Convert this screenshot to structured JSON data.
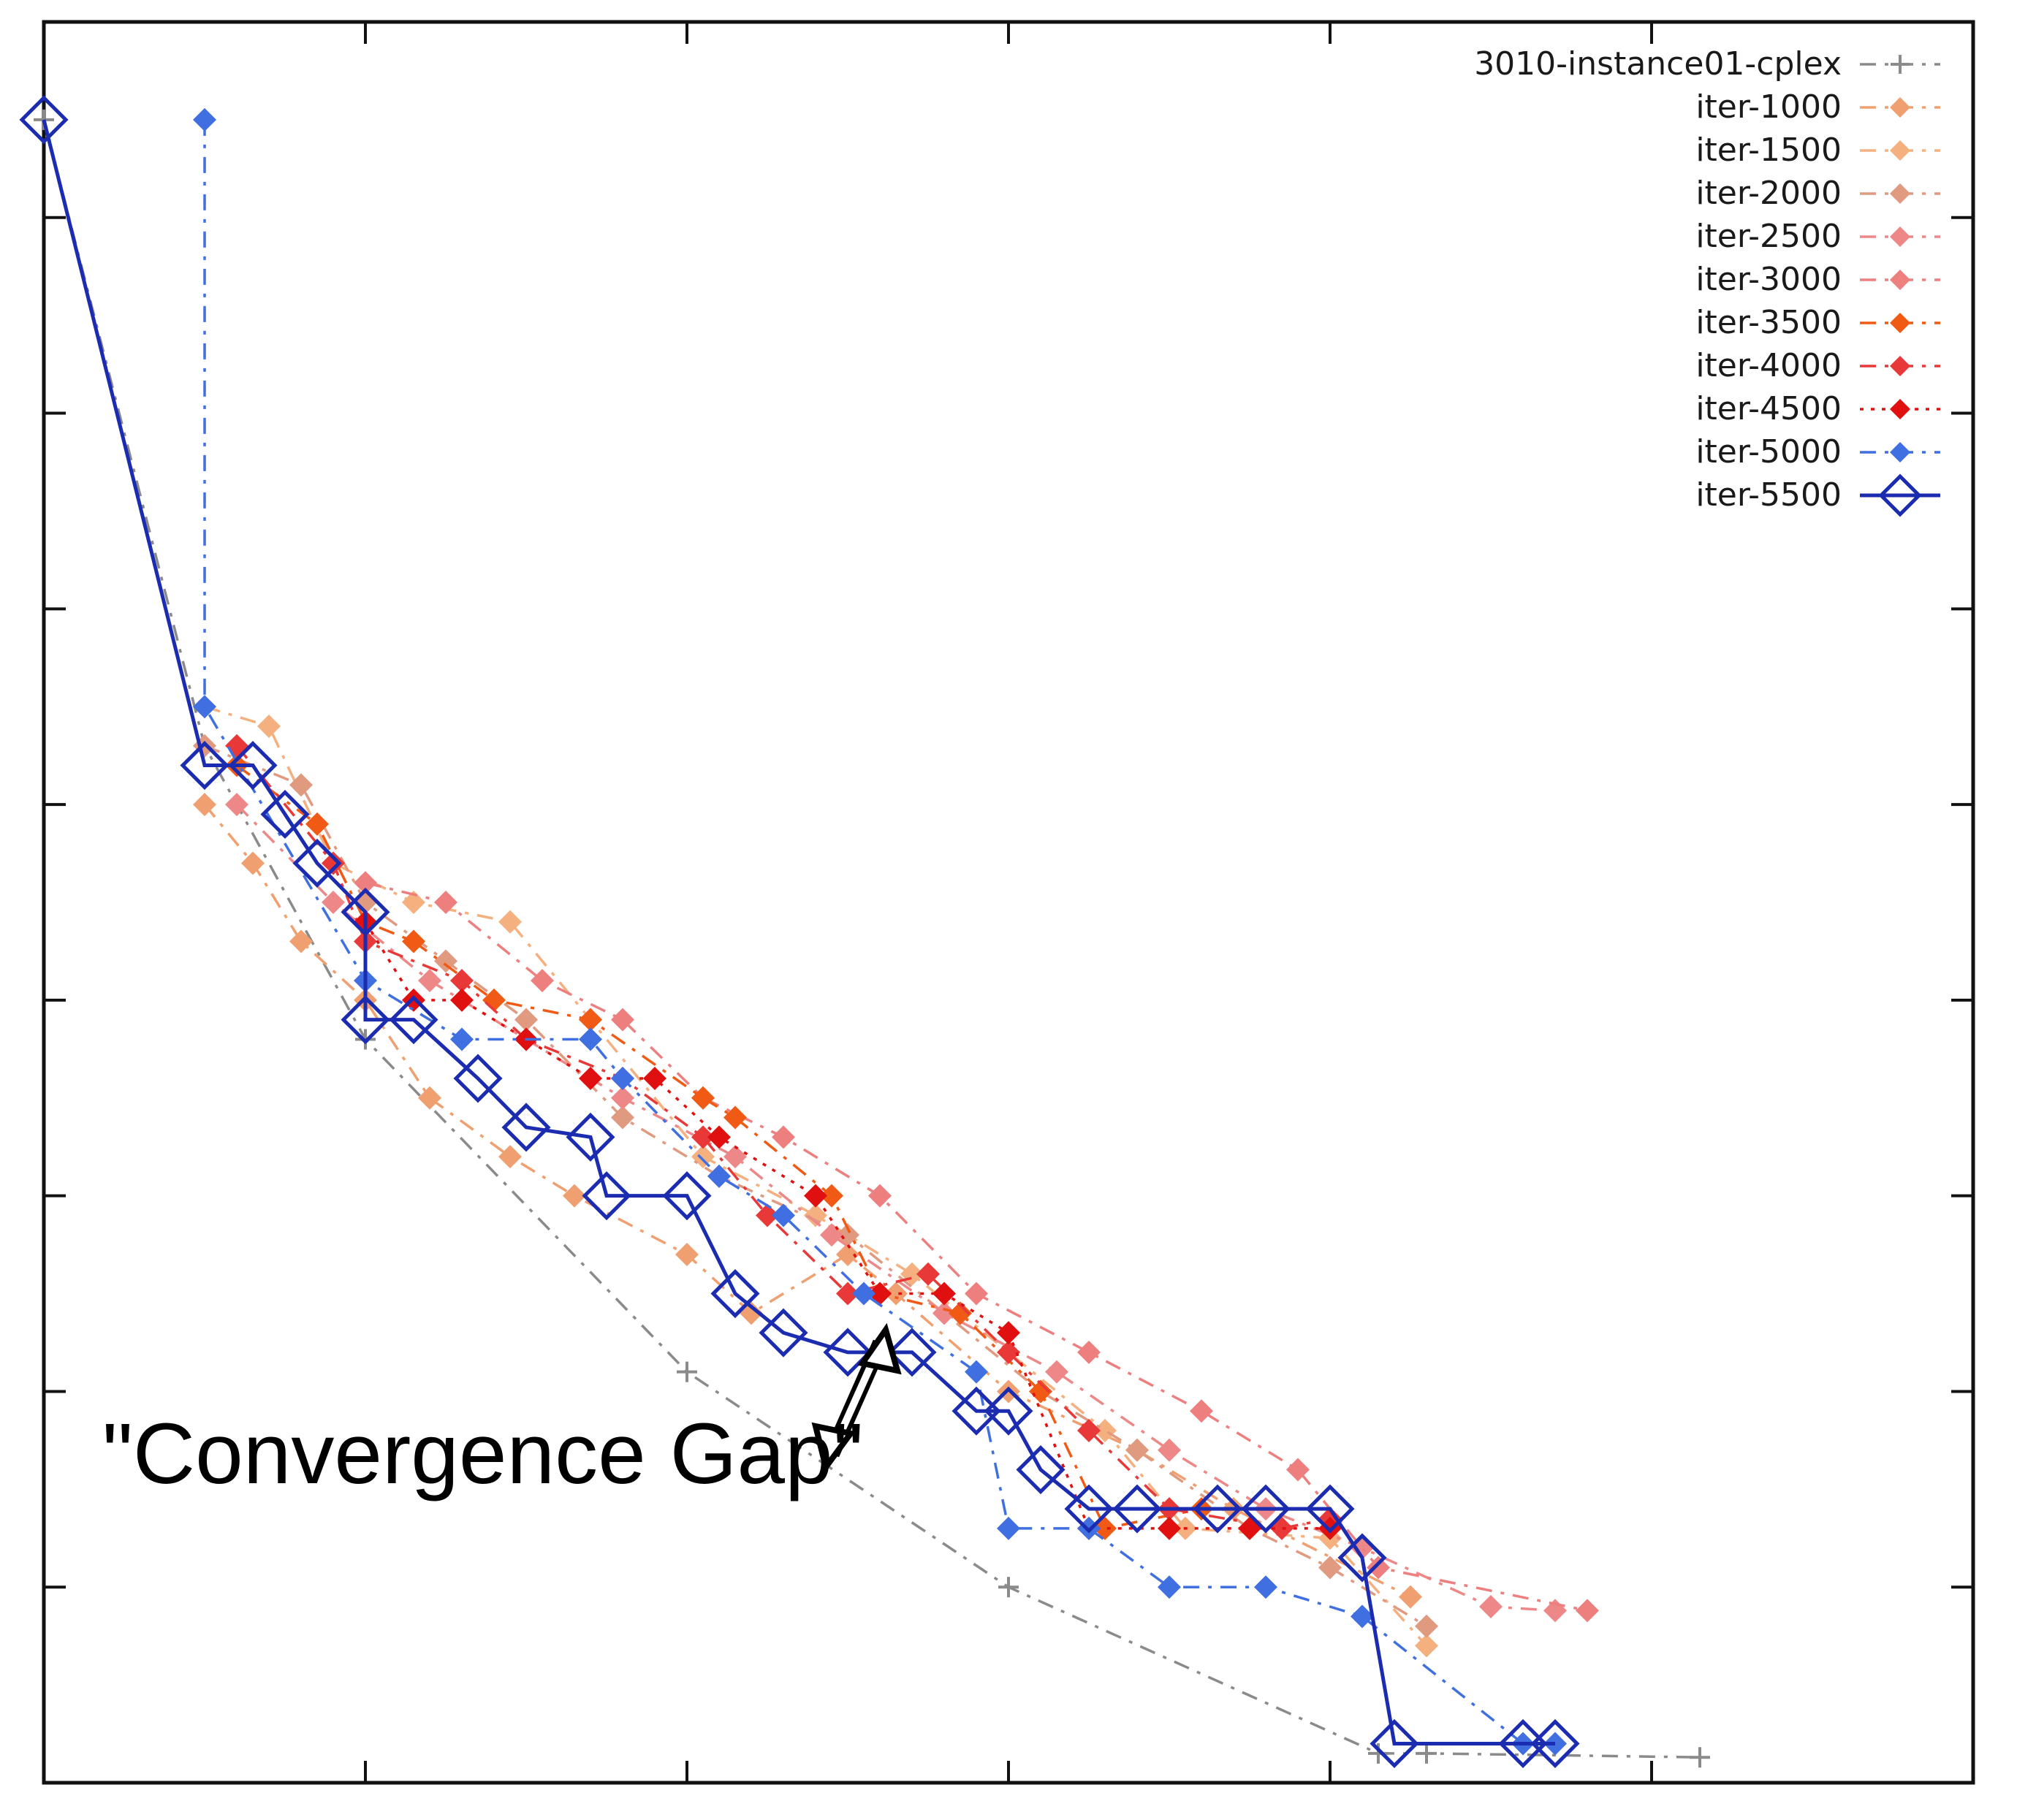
{
  "chart_data": {
    "type": "line",
    "title": "",
    "xlabel": "",
    "ylabel": "",
    "xlim": [
      0,
      12
    ],
    "ylim": [
      0,
      9
    ],
    "grid": false,
    "legend_position": "top-right",
    "annotation": "\"Convergence Gap\"",
    "series": [
      {
        "name": "3010-instance01-cplex",
        "color": "#8a8a8a",
        "marker": "plus",
        "dash": "dashdot",
        "x": [
          0.0,
          1.0,
          2.0,
          4.0,
          6.0,
          8.3,
          8.6,
          10.3
        ],
        "y": [
          8.5,
          5.3,
          3.8,
          2.1,
          1.0,
          0.15,
          0.15,
          0.13
        ]
      },
      {
        "name": "iter-1000",
        "color": "#f0a070",
        "marker": "diamond-filled",
        "dash": "dashdot",
        "x": [
          1.0,
          1.3,
          1.6,
          2.0,
          2.4,
          2.9,
          3.3,
          4.0,
          4.4,
          5.0,
          5.3,
          6.0,
          6.8,
          7.4,
          8.5
        ],
        "y": [
          5.0,
          4.7,
          4.3,
          4.0,
          3.5,
          3.2,
          3.0,
          2.7,
          2.4,
          2.7,
          2.5,
          2.0,
          1.7,
          1.4,
          0.95
        ]
      },
      {
        "name": "iter-1500",
        "color": "#f5b080",
        "marker": "diamond-filled",
        "dash": "dashdot",
        "x": [
          1.0,
          1.4,
          1.8,
          2.3,
          2.9,
          3.4,
          4.1,
          4.8,
          5.4,
          6.0,
          6.6,
          7.1,
          8.0,
          8.6
        ],
        "y": [
          5.5,
          5.4,
          4.7,
          4.5,
          4.4,
          3.9,
          3.2,
          2.9,
          2.6,
          2.2,
          1.8,
          1.3,
          1.25,
          0.7
        ]
      },
      {
        "name": "iter-2000",
        "color": "#e09a80",
        "marker": "diamond-filled",
        "dash": "dashdot",
        "x": [
          1.0,
          1.6,
          2.0,
          2.5,
          3.0,
          3.6,
          4.2,
          5.0,
          5.6,
          6.2,
          6.8,
          7.5,
          8.0,
          8.6
        ],
        "y": [
          5.3,
          5.1,
          4.5,
          4.2,
          3.9,
          3.4,
          3.1,
          2.8,
          2.4,
          2.0,
          1.7,
          1.3,
          1.1,
          0.8
        ]
      },
      {
        "name": "iter-2500",
        "color": "#ee8888",
        "marker": "diamond-filled",
        "dash": "dashdot",
        "x": [
          1.2,
          1.8,
          2.4,
          3.0,
          3.6,
          4.3,
          4.9,
          5.6,
          6.3,
          7.0,
          7.6,
          8.2,
          9.0,
          9.4
        ],
        "y": [
          5.0,
          4.5,
          4.1,
          3.8,
          3.5,
          3.2,
          2.8,
          2.4,
          2.1,
          1.7,
          1.4,
          1.2,
          0.9,
          0.88
        ]
      },
      {
        "name": "iter-3000",
        "color": "#ee7f7f",
        "marker": "diamond-filled",
        "dash": "dashdot",
        "x": [
          2.0,
          2.5,
          3.1,
          3.6,
          4.1,
          4.6,
          5.2,
          5.8,
          6.5,
          7.2,
          7.8,
          8.3,
          9.6
        ],
        "y": [
          4.6,
          4.5,
          4.1,
          3.9,
          3.5,
          3.3,
          3.0,
          2.5,
          2.2,
          1.9,
          1.6,
          1.1,
          0.88
        ]
      },
      {
        "name": "iter-3500",
        "color": "#f05a14",
        "marker": "diamond-filled",
        "dash": "dashdot",
        "x": [
          1.2,
          1.7,
          2.0,
          2.3,
          2.8,
          3.4,
          4.1,
          4.3,
          4.9,
          5.2,
          5.7,
          6.2,
          6.6,
          7.2
        ],
        "y": [
          5.2,
          4.9,
          4.4,
          4.3,
          4.0,
          3.9,
          3.5,
          3.4,
          3.0,
          2.5,
          2.4,
          2.0,
          1.3,
          1.4
        ]
      },
      {
        "name": "iter-4000",
        "color": "#e83838",
        "marker": "diamond-filled",
        "dash": "dashdot",
        "x": [
          1.2,
          1.8,
          2.0,
          2.6,
          3.0,
          3.6,
          4.1,
          4.5,
          5.0,
          5.5,
          6.0,
          6.5,
          7.0,
          7.7,
          8.0
        ],
        "y": [
          5.3,
          4.7,
          4.3,
          4.1,
          3.8,
          3.6,
          3.3,
          2.9,
          2.5,
          2.6,
          2.2,
          1.8,
          1.4,
          1.3,
          1.35
        ]
      },
      {
        "name": "iter-4500",
        "color": "#e01010",
        "marker": "diamond-filled",
        "dash": "dot",
        "x": [
          2.0,
          2.3,
          2.6,
          3.0,
          3.4,
          3.8,
          4.2,
          4.8,
          5.2,
          5.6,
          6.0,
          6.5,
          7.0,
          7.5,
          8.0
        ],
        "y": [
          4.4,
          4.0,
          4.0,
          3.8,
          3.6,
          3.6,
          3.3,
          3.0,
          2.5,
          2.5,
          2.3,
          1.3,
          1.3,
          1.3,
          1.3
        ]
      },
      {
        "name": "iter-5000",
        "color": "#3f6fe0",
        "marker": "diamond-filled",
        "dash": "dashdot",
        "x": [
          1.0,
          1.0,
          2.0,
          2.6,
          3.4,
          3.6,
          4.2,
          4.6,
          5.1,
          5.8,
          6.0,
          6.5,
          7.0,
          7.6,
          8.2,
          9.2,
          9.4
        ],
        "y": [
          8.5,
          5.5,
          4.1,
          3.8,
          3.8,
          3.6,
          3.1,
          2.9,
          2.5,
          2.1,
          1.3,
          1.3,
          1.0,
          1.0,
          0.85,
          0.2,
          0.2
        ]
      },
      {
        "name": "iter-5500",
        "color": "#1c2cb0",
        "marker": "diamond-open",
        "dash": "solid",
        "x": [
          0.0,
          1.0,
          1.3,
          1.5,
          1.7,
          2.0,
          2.0,
          2.3,
          2.7,
          3.0,
          3.4,
          3.5,
          4.0,
          4.3,
          4.6,
          5.0,
          5.4,
          5.8,
          6.0,
          6.2,
          6.5,
          6.8,
          7.3,
          7.6,
          8.0,
          8.2,
          8.4,
          9.2,
          9.4
        ],
        "y": [
          8.5,
          5.2,
          5.2,
          4.95,
          4.7,
          4.45,
          3.9,
          3.9,
          3.6,
          3.35,
          3.3,
          3.0,
          3.0,
          2.5,
          2.3,
          2.2,
          2.2,
          1.9,
          1.9,
          1.6,
          1.4,
          1.4,
          1.4,
          1.4,
          1.4,
          1.15,
          0.2,
          0.2,
          0.2
        ]
      }
    ]
  }
}
